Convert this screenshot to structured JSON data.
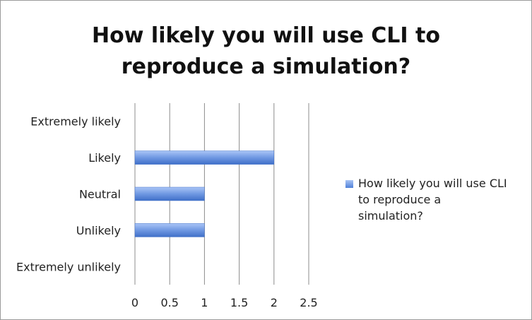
{
  "chart_data": {
    "type": "bar",
    "orientation": "horizontal",
    "title": "How likely you will use CLI to reproduce a simulation?",
    "title_lines": [
      "How likely you will use CLI to",
      "reproduce a simulation?"
    ],
    "categories": [
      "Extremely likely",
      "Likely",
      "Neutral",
      "Unlikely",
      "Extremely unlikely"
    ],
    "category_labels": [
      "Extremely likely",
      "Likely",
      "Neutral",
      "Unlikely ",
      "Extremely unlikely"
    ],
    "series": [
      {
        "name": "How likely you will use CLI to reproduce a simulation?",
        "values": [
          0,
          2,
          1,
          1,
          0
        ],
        "color": "#4f81d8"
      }
    ],
    "xlim": [
      0,
      2.5
    ],
    "xticks": [
      "0",
      "0.5",
      "1",
      "1.5",
      "2",
      "2.5"
    ],
    "grid": true,
    "legend_position": "right",
    "legend_lines": [
      "How likely you will use CLI",
      "to reproduce a",
      "simulation?"
    ]
  }
}
